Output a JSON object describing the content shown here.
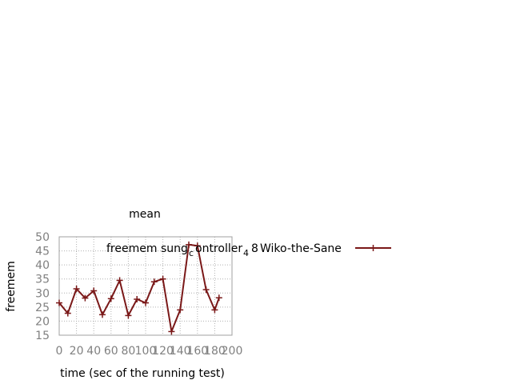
{
  "chart_data": {
    "type": "line",
    "title": "mean",
    "xlabel": "time (sec of the running test)",
    "ylabel": "freemem",
    "xlim": [
      0,
      200
    ],
    "ylim": [
      15,
      50
    ],
    "x_ticks": [
      "0",
      "20",
      "40",
      "60",
      "80",
      "100",
      "120",
      "140",
      "160",
      "180",
      "200"
    ],
    "y_ticks": [
      "15",
      "20",
      "25",
      "30",
      "35",
      "40",
      "45",
      "50"
    ],
    "grid": true,
    "legend_position": "top-right",
    "legend_label": "freemem sung_controller_4 8 Wiko-the-Sane",
    "legend_parts": {
      "prefix": "freemem sung",
      "c": "c",
      "ontroller": "ontroller",
      "sub4": "4",
      "eight": "8",
      "suffix": "Wiko-the-Sane"
    },
    "series": [
      {
        "name": "freemem sung_controller_4 8 Wiko-the-Sane",
        "color": "#7a1818",
        "marker": "plus",
        "x": [
          0,
          10,
          20,
          30,
          40,
          50,
          60,
          70,
          80,
          90,
          100,
          110,
          120,
          130,
          140,
          150,
          160,
          170,
          180,
          185
        ],
        "y": [
          26.5,
          22.8,
          31.5,
          28.2,
          30.8,
          22.3,
          28.0,
          34.5,
          22.0,
          27.8,
          26.5,
          34.0,
          35.0,
          16.3,
          24.0,
          47.2,
          46.8,
          31.2,
          24.0,
          28.3
        ]
      }
    ]
  }
}
